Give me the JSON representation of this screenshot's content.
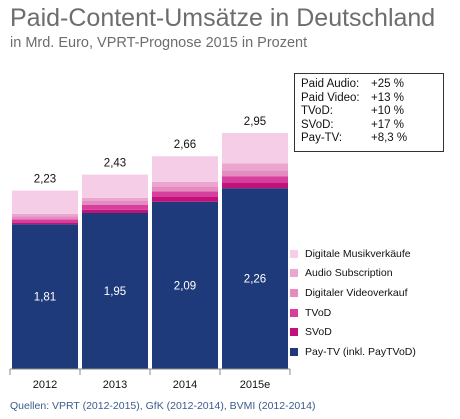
{
  "header": {
    "title": "Paid-Content-Umsätze in Deutschland",
    "subtitle": "in Mrd. Euro, VPRT-Prognose 2015 in Prozent"
  },
  "growth_box": {
    "rows": [
      {
        "label": "Paid Audio:",
        "value": "+25 %"
      },
      {
        "label": "Paid Video:",
        "value": "+13 %"
      },
      {
        "label": "TVoD:",
        "value": "+10 %"
      },
      {
        "label": "SVoD:",
        "value": "+17 %"
      },
      {
        "label": "Pay-TV:",
        "value": "+8,3 %"
      }
    ]
  },
  "source": "Quellen: VPRT (2012-2015), GfK (2012-2014), BVMI (2012-2014)",
  "colors": {
    "pay_tv": "#1f3a7a",
    "svod": "#c0127a",
    "tvod": "#d63f9b",
    "digitaler_videoverkauf": "#e48cc0",
    "audio_subscription": "#eaa6cf",
    "digitale_musikverkaeufe": "#f5cde6"
  },
  "chart_data": {
    "type": "bar",
    "stacked": true,
    "categories": [
      "2012",
      "2013",
      "2014",
      "2015e"
    ],
    "totals": [
      "2,23",
      "2,43",
      "2,66",
      "2,95"
    ],
    "total_values": [
      2.23,
      2.43,
      2.66,
      2.95
    ],
    "series": [
      {
        "name": "Pay-TV (inkl. PayTVoD)",
        "values": [
          1.81,
          1.95,
          2.09,
          2.26
        ],
        "labels": [
          "1,81",
          "1,95",
          "2,09",
          "2,26"
        ],
        "color": "#1f3a7a"
      },
      {
        "name": "SVoD",
        "values": [
          0.02,
          0.04,
          0.06,
          0.07
        ],
        "color": "#c0127a"
      },
      {
        "name": "TVoD",
        "values": [
          0.04,
          0.06,
          0.07,
          0.08
        ],
        "color": "#d63f9b"
      },
      {
        "name": "Digitaler Videoverkauf",
        "values": [
          0.04,
          0.05,
          0.06,
          0.07
        ],
        "color": "#e48cc0"
      },
      {
        "name": "Audio  Subscription",
        "values": [
          0.03,
          0.04,
          0.06,
          0.09
        ],
        "color": "#eaa6cf"
      },
      {
        "name": "Digitale Musikverkäufe",
        "values": [
          0.29,
          0.29,
          0.32,
          0.38
        ],
        "color": "#f5cde6"
      }
    ],
    "legend_order": [
      "Digitale Musikverkäufe",
      "Audio  Subscription",
      "Digitaler Videoverkauf",
      "TVoD",
      "SVoD",
      "Pay-TV (inkl. PayTVoD)"
    ],
    "legend_position": "right",
    "ylim": [
      0,
      3.2
    ],
    "grid": false
  }
}
